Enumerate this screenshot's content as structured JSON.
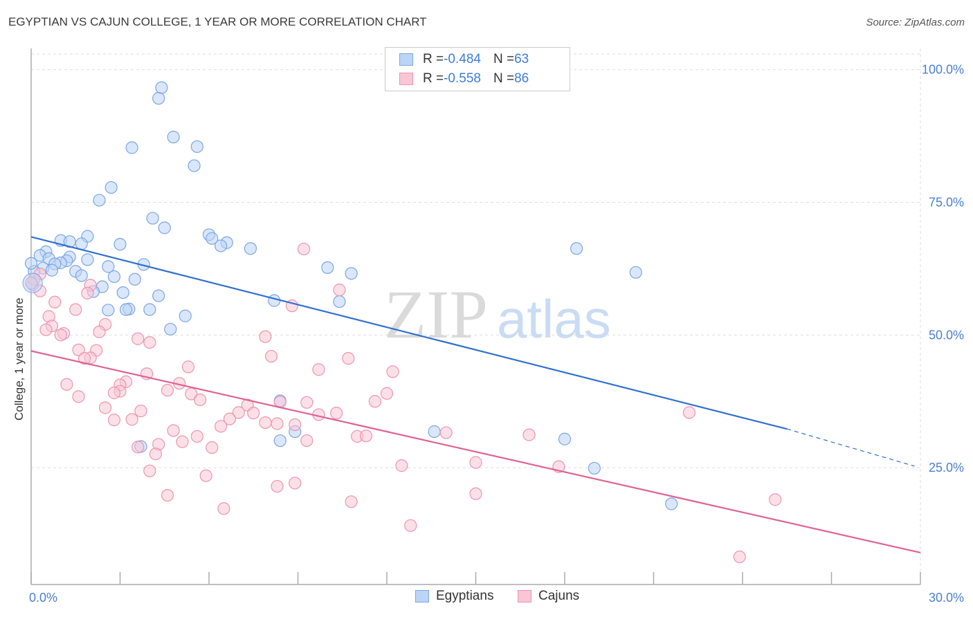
{
  "title": "EGYPTIAN VS CAJUN COLLEGE, 1 YEAR OR MORE CORRELATION CHART",
  "source": "Source: ZipAtlas.com",
  "watermark": {
    "zip": "ZIP",
    "atlas": "atlas"
  },
  "legend": {
    "rows": [
      {
        "r_label": "R = ",
        "r_value": "-0.484",
        "n_label": "N = ",
        "n_value": "63"
      },
      {
        "r_label": "R = ",
        "r_value": "-0.558",
        "n_label": "N = ",
        "n_value": "86"
      }
    ]
  },
  "bottom_legend": {
    "egyptians": "Egyptians",
    "cajuns": "Cajuns"
  },
  "colors": {
    "egyptians_fill": "#bcd4f6",
    "egyptians_stroke": "#7aa6e6",
    "egyptians_line": "#2f6fd0",
    "cajuns_fill": "#f9c6d6",
    "cajuns_stroke": "#ec94b0",
    "cajuns_line": "#e0628f",
    "grid": "#dddddd",
    "tick_label": "#4a7fd0"
  },
  "chart_data": {
    "type": "scatter",
    "title": "EGYPTIAN VS CAJUN COLLEGE, 1 YEAR OR MORE CORRELATION CHART",
    "xlabel": "",
    "ylabel": "College, 1 year or more",
    "xlim": [
      0,
      30
    ],
    "ylim": [
      3,
      104
    ],
    "x_ticks": [
      {
        "value": 0,
        "label": "0.0%"
      },
      {
        "value": 30,
        "label": "30.0%"
      }
    ],
    "y_ticks": [
      {
        "value": 25,
        "label": "25.0%"
      },
      {
        "value": 50,
        "label": "50.0%"
      },
      {
        "value": 75,
        "label": "75.0%"
      },
      {
        "value": 100,
        "label": "100.0%"
      }
    ],
    "grid": true,
    "legend_position": "top-center",
    "series": [
      {
        "name": "Egyptians",
        "r": -0.484,
        "n": 63,
        "trend": {
          "x0": 0,
          "y0": 68.5,
          "x1": 25.5,
          "y1": 32.3,
          "dash_to_x": 29.8,
          "dash_to_y": 25.3
        },
        "points": [
          [
            4.4,
            96.6
          ],
          [
            4.3,
            94.6
          ],
          [
            4.8,
            87.3
          ],
          [
            3.4,
            85.3
          ],
          [
            5.6,
            85.5
          ],
          [
            5.5,
            81.9
          ],
          [
            2.7,
            77.8
          ],
          [
            2.3,
            75.4
          ],
          [
            4.1,
            72.0
          ],
          [
            4.5,
            70.2
          ],
          [
            6.0,
            68.9
          ],
          [
            6.1,
            68.2
          ],
          [
            1.9,
            68.6
          ],
          [
            1.0,
            67.8
          ],
          [
            1.3,
            67.6
          ],
          [
            1.7,
            67.2
          ],
          [
            3.0,
            67.1
          ],
          [
            6.6,
            67.4
          ],
          [
            6.4,
            66.8
          ],
          [
            7.4,
            66.3
          ],
          [
            18.4,
            66.3
          ],
          [
            0.5,
            65.7
          ],
          [
            0.3,
            65.0
          ],
          [
            0.6,
            64.4
          ],
          [
            1.3,
            64.7
          ],
          [
            1.9,
            64.2
          ],
          [
            1.2,
            64.0
          ],
          [
            1.0,
            63.6
          ],
          [
            0.8,
            63.4
          ],
          [
            2.6,
            62.9
          ],
          [
            3.8,
            63.3
          ],
          [
            0.4,
            62.6
          ],
          [
            0.7,
            62.2
          ],
          [
            0.1,
            62.0
          ],
          [
            1.5,
            62.0
          ],
          [
            1.7,
            61.2
          ],
          [
            2.8,
            61.0
          ],
          [
            3.5,
            60.5
          ],
          [
            10.0,
            62.7
          ],
          [
            10.8,
            61.6
          ],
          [
            20.4,
            61.8
          ],
          [
            0.05,
            59.5
          ],
          [
            2.4,
            59.1
          ],
          [
            2.1,
            58.2
          ],
          [
            3.1,
            58.0
          ],
          [
            4.3,
            57.4
          ],
          [
            8.2,
            56.5
          ],
          [
            10.4,
            56.3
          ],
          [
            2.6,
            54.7
          ],
          [
            3.3,
            54.9
          ],
          [
            3.2,
            54.8
          ],
          [
            4.0,
            54.8
          ],
          [
            5.2,
            53.6
          ],
          [
            4.7,
            51.1
          ],
          [
            8.4,
            37.6
          ],
          [
            13.6,
            31.8
          ],
          [
            8.4,
            30.1
          ],
          [
            8.9,
            31.8
          ],
          [
            3.7,
            29.0
          ],
          [
            18.0,
            30.4
          ],
          [
            21.6,
            18.2
          ],
          [
            19.0,
            24.9
          ],
          [
            0.0,
            63.5
          ]
        ]
      },
      {
        "name": "Cajuns",
        "r": -0.558,
        "n": 86,
        "trend": {
          "x0": 0,
          "y0": 47.0,
          "x1": 30,
          "y1": 9.0
        },
        "points": [
          [
            0.3,
            61.5
          ],
          [
            0.3,
            58.3
          ],
          [
            9.2,
            66.2
          ],
          [
            2.0,
            59.4
          ],
          [
            1.9,
            57.9
          ],
          [
            10.4,
            58.5
          ],
          [
            0.8,
            56.2
          ],
          [
            8.8,
            55.5
          ],
          [
            1.5,
            54.8
          ],
          [
            0.6,
            53.5
          ],
          [
            2.5,
            52.0
          ],
          [
            0.7,
            51.7
          ],
          [
            0.5,
            51.0
          ],
          [
            2.3,
            50.6
          ],
          [
            1.1,
            50.3
          ],
          [
            1.0,
            50.0
          ],
          [
            7.9,
            49.7
          ],
          [
            3.6,
            49.3
          ],
          [
            4.0,
            48.6
          ],
          [
            1.6,
            47.2
          ],
          [
            2.2,
            47.1
          ],
          [
            8.1,
            46.0
          ],
          [
            10.7,
            45.6
          ],
          [
            2.0,
            45.7
          ],
          [
            1.8,
            45.6
          ],
          [
            5.3,
            44.0
          ],
          [
            9.7,
            43.5
          ],
          [
            12.2,
            43.1
          ],
          [
            3.9,
            42.7
          ],
          [
            3.2,
            41.2
          ],
          [
            3.0,
            40.6
          ],
          [
            1.2,
            40.7
          ],
          [
            5.0,
            40.9
          ],
          [
            4.6,
            39.6
          ],
          [
            3.0,
            39.4
          ],
          [
            2.8,
            39.1
          ],
          [
            5.4,
            38.9
          ],
          [
            12.0,
            39.0
          ],
          [
            1.6,
            38.4
          ],
          [
            5.7,
            37.8
          ],
          [
            8.4,
            37.4
          ],
          [
            9.3,
            37.3
          ],
          [
            11.6,
            37.5
          ],
          [
            2.5,
            36.3
          ],
          [
            3.7,
            35.7
          ],
          [
            7.3,
            36.8
          ],
          [
            7.0,
            35.4
          ],
          [
            7.5,
            35.3
          ],
          [
            9.7,
            35.0
          ],
          [
            10.3,
            35.3
          ],
          [
            22.2,
            35.4
          ],
          [
            6.7,
            34.2
          ],
          [
            2.8,
            34.0
          ],
          [
            3.4,
            34.1
          ],
          [
            7.9,
            33.5
          ],
          [
            8.3,
            33.3
          ],
          [
            8.9,
            33.1
          ],
          [
            6.4,
            32.8
          ],
          [
            4.8,
            32.0
          ],
          [
            14.0,
            31.6
          ],
          [
            16.8,
            31.2
          ],
          [
            11.0,
            30.9
          ],
          [
            11.3,
            31.0
          ],
          [
            5.6,
            30.9
          ],
          [
            9.3,
            30.1
          ],
          [
            5.1,
            29.9
          ],
          [
            4.3,
            29.4
          ],
          [
            3.6,
            28.9
          ],
          [
            6.1,
            28.8
          ],
          [
            4.2,
            27.6
          ],
          [
            15.0,
            26.0
          ],
          [
            17.8,
            25.2
          ],
          [
            12.5,
            25.4
          ],
          [
            4.0,
            24.4
          ],
          [
            5.9,
            23.5
          ],
          [
            8.9,
            22.1
          ],
          [
            8.3,
            21.5
          ],
          [
            4.6,
            19.8
          ],
          [
            15.0,
            20.1
          ],
          [
            10.8,
            18.6
          ],
          [
            25.1,
            19.0
          ],
          [
            6.5,
            17.3
          ],
          [
            12.8,
            14.1
          ],
          [
            23.9,
            8.2
          ],
          [
            0.1,
            60.5
          ],
          [
            0.0,
            59.8
          ]
        ]
      }
    ]
  }
}
